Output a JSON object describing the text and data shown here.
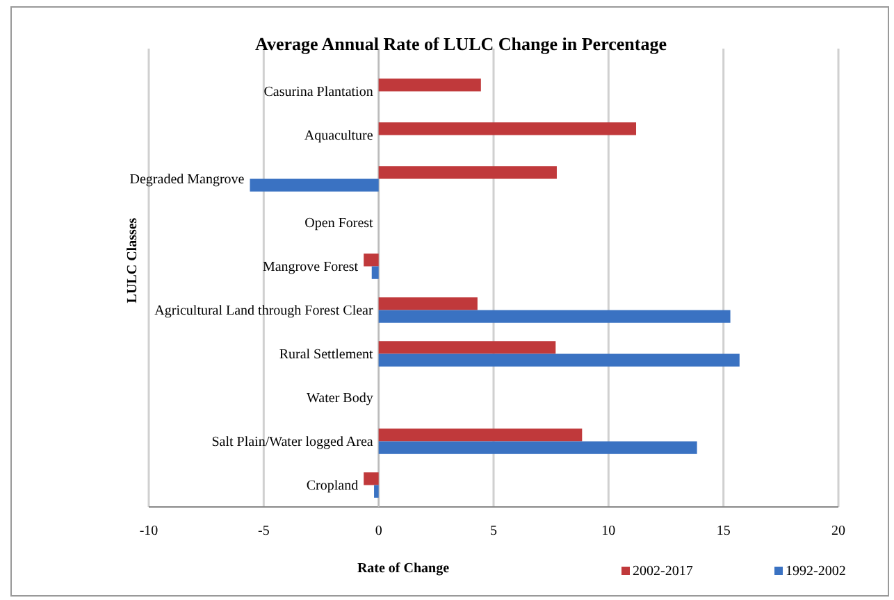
{
  "chart_data": {
    "type": "bar",
    "orientation": "horizontal",
    "title": "Average Annual Rate of LULC Change in Percentage",
    "xlabel": "Rate of Change",
    "ylabel": "LULC Classes",
    "categories": [
      "Casurina Plantation",
      "Aquaculture",
      "Degraded Mangrove",
      "Open Forest",
      "Mangrove Forest",
      "Agricultural Land through Forest Clear",
      "Rural Settlement",
      "Water Body",
      "Salt Plain/Water logged Area",
      "Cropland"
    ],
    "series": [
      {
        "name": "2002-2017",
        "color": "#c0393b",
        "values": [
          4.45,
          11.2,
          7.75,
          null,
          -0.65,
          4.3,
          7.7,
          null,
          8.85,
          -0.65
        ]
      },
      {
        "name": "1992-2002",
        "color": "#3a72c2",
        "values": [
          null,
          null,
          -5.6,
          null,
          -0.3,
          15.3,
          15.7,
          null,
          13.85,
          -0.2
        ]
      }
    ],
    "xlim": [
      -10,
      20
    ],
    "xticks": [
      -10,
      -5,
      0,
      5,
      10,
      15,
      20
    ],
    "grid": "x",
    "legend": "bottom right"
  }
}
